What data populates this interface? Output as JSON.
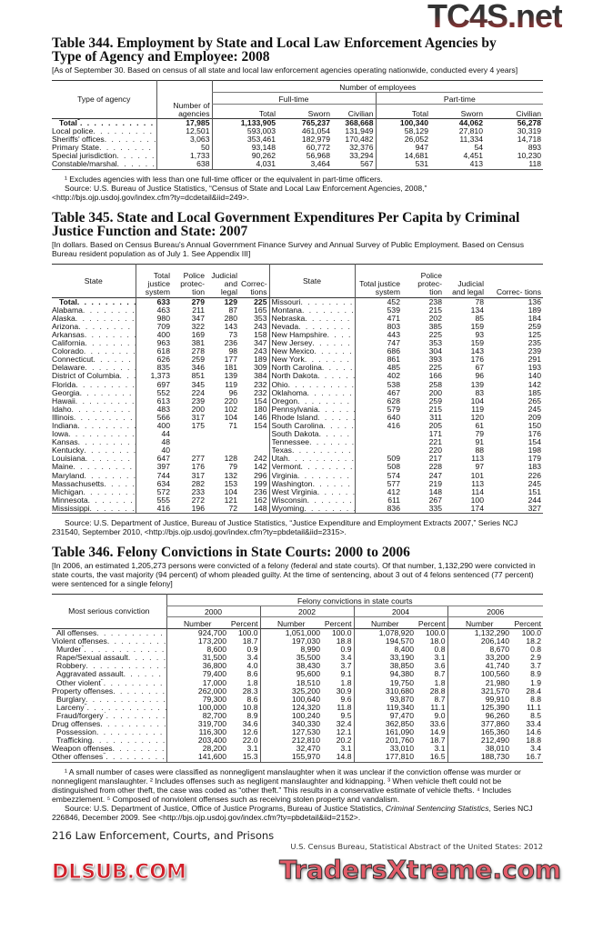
{
  "watermarks": {
    "top": "TC4S.net",
    "middle": "DLSUB.COM",
    "bottom": "TradersXtreme.com"
  },
  "t344": {
    "title": "Table 344. Employment by State and Local Law Enforcement Agencies by Type of Agency and Employee: 2008",
    "note": "[As of September 30. Based on census of all state and local law enforcement agencies operating nationwide, conducted every 4 years]",
    "headers": {
      "type": "Type of agency",
      "agencies": "Number of agencies",
      "employees": "Number of employees",
      "fulltime": "Full-time",
      "parttime": "Part-time",
      "total": "Total",
      "sworn": "Sworn",
      "civilian": "Civilian"
    },
    "rows": [
      {
        "label": "Total",
        "sup": "1",
        "bold": true,
        "indent": true,
        "v": [
          "17,985",
          "1,133,905",
          "765,237",
          "368,668",
          "100,340",
          "44,062",
          "56,278"
        ]
      },
      {
        "label": "Local police",
        "v": [
          "12,501",
          "593,003",
          "461,054",
          "131,949",
          "58,129",
          "27,810",
          "30,319"
        ]
      },
      {
        "label": "Sheriffs' offices",
        "v": [
          "3,063",
          "353,461",
          "182,979",
          "170,482",
          "26,052",
          "11,334",
          "14,718"
        ]
      },
      {
        "label": "Primary State",
        "v": [
          "50",
          "93,148",
          "60,772",
          "32,376",
          "947",
          "54",
          "893"
        ]
      },
      {
        "label": "Special jurisdiction",
        "v": [
          "1,733",
          "90,262",
          "56,968",
          "33,294",
          "14,681",
          "4,451",
          "10,230"
        ]
      },
      {
        "label": "Constable/marshal",
        "v": [
          "638",
          "4,031",
          "3,464",
          "567",
          "531",
          "413",
          "118"
        ]
      }
    ],
    "footnote": "¹ Excludes agencies with less than one full-time officer or the equivalent in part-time officers.",
    "source": "Source: U.S. Bureau of Justice Statistics, “Census of State and Local Law Enforcement Agencies, 2008,” <http://bjs.ojp.usdoj.gov/index.cfm?ty=dcdetail&iid=249>."
  },
  "t345": {
    "title": "Table 345. State and Local Government Expenditures Per Capita by Criminal Justice Function and State: 2007",
    "note": "[In dollars. Based on Census Bureau's Annual Government Finance Survey and Annual Survey of Public Employment. Based on Census Bureau resident population as of July 1. See Appendix III]",
    "headers": {
      "state": "State",
      "total": "Total justice system",
      "police": "Police protec- tion",
      "judicial": "Judicial and legal",
      "corrections": "Correc- tions"
    },
    "left": [
      {
        "label": "Total",
        "bold": true,
        "indent": true,
        "v": [
          "633",
          "279",
          "129",
          "225"
        ]
      },
      {
        "label": "Alabama",
        "v": [
          "463",
          "211",
          "87",
          "165"
        ]
      },
      {
        "label": "Alaska",
        "v": [
          "980",
          "347",
          "280",
          "353"
        ]
      },
      {
        "label": "Arizona",
        "v": [
          "709",
          "322",
          "143",
          "243"
        ]
      },
      {
        "label": "Arkansas",
        "v": [
          "400",
          "169",
          "73",
          "158"
        ]
      },
      {
        "label": "California",
        "v": [
          "963",
          "381",
          "236",
          "347"
        ]
      },
      {
        "label": "Colorado",
        "v": [
          "618",
          "278",
          "98",
          "243"
        ]
      },
      {
        "label": "Connecticut",
        "v": [
          "626",
          "259",
          "177",
          "189"
        ]
      },
      {
        "label": "Delaware",
        "v": [
          "835",
          "346",
          "181",
          "309"
        ]
      },
      {
        "label": "District of Columbia",
        "v": [
          "1,373",
          "851",
          "139",
          "384"
        ]
      },
      {
        "label": "Florida",
        "v": [
          "697",
          "345",
          "119",
          "232"
        ]
      },
      {
        "label": "Georgia",
        "v": [
          "552",
          "224",
          "96",
          "232"
        ]
      },
      {
        "label": "Hawaii",
        "v": [
          "613",
          "239",
          "220",
          "154"
        ]
      },
      {
        "label": "Idaho",
        "v": [
          "483",
          "200",
          "102",
          "180"
        ]
      },
      {
        "label": "Illinois",
        "v": [
          "566",
          "317",
          "104",
          "146"
        ]
      },
      {
        "label": "Indiana",
        "v": [
          "400",
          "175",
          "71",
          "154"
        ]
      },
      {
        "label": "Iowa",
        "v": [
          "44",
          "",
          "",
          ""
        ]
      },
      {
        "label": "Kansas",
        "v": [
          "48",
          "",
          "",
          ""
        ]
      },
      {
        "label": "Kentucky",
        "v": [
          "40",
          "",
          "",
          ""
        ]
      },
      {
        "label": "Louisiana",
        "v": [
          "647",
          "277",
          "128",
          "242"
        ]
      },
      {
        "label": "Maine",
        "v": [
          "397",
          "176",
          "79",
          "142"
        ]
      },
      {
        "label": "Maryland",
        "v": [
          "744",
          "317",
          "132",
          "296"
        ]
      },
      {
        "label": "Massachusetts",
        "v": [
          "634",
          "282",
          "153",
          "199"
        ]
      },
      {
        "label": "Michigan",
        "v": [
          "572",
          "233",
          "104",
          "236"
        ]
      },
      {
        "label": "Minnesota",
        "v": [
          "555",
          "272",
          "121",
          "162"
        ]
      },
      {
        "label": "Mississippi",
        "v": [
          "416",
          "196",
          "72",
          "148"
        ]
      }
    ],
    "right": [
      {
        "label": "Missouri",
        "v": [
          "452",
          "238",
          "78",
          "136"
        ]
      },
      {
        "label": "Montana",
        "v": [
          "539",
          "215",
          "134",
          "189"
        ]
      },
      {
        "label": "Nebraska",
        "v": [
          "471",
          "202",
          "85",
          "184"
        ]
      },
      {
        "label": "Nevada",
        "v": [
          "803",
          "385",
          "159",
          "259"
        ]
      },
      {
        "label": "New Hampshire",
        "v": [
          "443",
          "225",
          "93",
          "125"
        ]
      },
      {
        "label": "New Jersey",
        "v": [
          "747",
          "353",
          "159",
          "235"
        ]
      },
      {
        "label": "New Mexico",
        "v": [
          "686",
          "304",
          "143",
          "239"
        ]
      },
      {
        "label": "New York",
        "v": [
          "861",
          "393",
          "176",
          "291"
        ]
      },
      {
        "label": "North Carolina",
        "v": [
          "485",
          "225",
          "67",
          "193"
        ]
      },
      {
        "label": "North Dakota",
        "v": [
          "402",
          "166",
          "96",
          "140"
        ]
      },
      {
        "label": "Ohio",
        "v": [
          "538",
          "258",
          "139",
          "142"
        ]
      },
      {
        "label": "Oklahoma",
        "v": [
          "467",
          "200",
          "83",
          "185"
        ]
      },
      {
        "label": "Oregon",
        "v": [
          "628",
          "259",
          "104",
          "265"
        ]
      },
      {
        "label": "Pennsylvania",
        "v": [
          "579",
          "215",
          "119",
          "245"
        ]
      },
      {
        "label": "Rhode Island",
        "v": [
          "640",
          "311",
          "120",
          "209"
        ]
      },
      {
        "label": "South Carolina",
        "v": [
          "416",
          "205",
          "61",
          "150"
        ]
      },
      {
        "label": "South Dakota",
        "v": [
          "",
          "171",
          "79",
          "176"
        ]
      },
      {
        "label": "Tennessee",
        "v": [
          "",
          "221",
          "91",
          "154"
        ]
      },
      {
        "label": "Texas",
        "v": [
          "",
          "220",
          "88",
          "198"
        ]
      },
      {
        "label": "Utah",
        "v": [
          "509",
          "217",
          "113",
          "179"
        ]
      },
      {
        "label": "Vermont",
        "v": [
          "508",
          "228",
          "97",
          "183"
        ]
      },
      {
        "label": "Virginia",
        "v": [
          "574",
          "247",
          "101",
          "226"
        ]
      },
      {
        "label": "Washington",
        "v": [
          "577",
          "219",
          "113",
          "245"
        ]
      },
      {
        "label": "West Virginia",
        "v": [
          "412",
          "148",
          "114",
          "151"
        ]
      },
      {
        "label": "Wisconsin",
        "v": [
          "611",
          "267",
          "100",
          "244"
        ]
      },
      {
        "label": "Wyoming",
        "v": [
          "836",
          "335",
          "174",
          "327"
        ]
      }
    ],
    "source": "Source: U.S. Department of Justice, Bureau of Justice Statistics, “Justice Expenditure and Employment Extracts 2007,” Series NCJ 231540, September 2010, <http://bjs.ojp.usdoj.gov/index.cfm?ty=pbdetail&iid=2315>."
  },
  "t346": {
    "title": "Table 346. Felony Convictions in State Courts: 2000 to 2006",
    "note": "[In 2006, an estimated 1,205,273 persons were convicted of a felony (federal and state courts). Of that number, 1,132,290 were convicted in state courts, the vast majority (94 percent) of whom pleaded guilty. At the time of sentencing, about 3 out of 4 felons sentenced (77 percent) were sentenced for a single felony]",
    "headers": {
      "conviction": "Most serious conviction",
      "group": "Felony convictions in state courts",
      "years": [
        "2000",
        "2002",
        "2004",
        "2006"
      ],
      "number": "Number",
      "percent": "Percent"
    },
    "rows": [
      {
        "label": "All offenses",
        "indent": 1,
        "v": [
          "924,700",
          "100.0",
          "1,051,000",
          "100.0",
          "1,078,920",
          "100.0",
          "1,132,290",
          "100.0"
        ]
      },
      {
        "label": "Violent offenses",
        "v": [
          "173,200",
          "18.7",
          "197,030",
          "18.8",
          "194,570",
          "18.0",
          "206,140",
          "18.2"
        ]
      },
      {
        "label": "Murder",
        "sup": "1",
        "indent": 1,
        "v": [
          "8,600",
          "0.9",
          "8,990",
          "0.9",
          "8,400",
          "0.8",
          "8,670",
          "0.8"
        ]
      },
      {
        "label": "Rape/Sexual assault",
        "indent": 1,
        "v": [
          "31,500",
          "3.4",
          "35,500",
          "3.4",
          "33,190",
          "3.1",
          "33,200",
          "2.9"
        ]
      },
      {
        "label": "Robbery",
        "indent": 1,
        "v": [
          "36,800",
          "4.0",
          "38,430",
          "3.7",
          "38,850",
          "3.6",
          "41,740",
          "3.7"
        ]
      },
      {
        "label": "Aggravated assault",
        "indent": 1,
        "v": [
          "79,400",
          "8.6",
          "95,600",
          "9.1",
          "94,380",
          "8.7",
          "100,560",
          "8.9"
        ]
      },
      {
        "label": "Other violent",
        "sup": "2",
        "indent": 1,
        "v": [
          "17,000",
          "1.8",
          "18,510",
          "1.8",
          "19,750",
          "1.8",
          "21,980",
          "1.9"
        ]
      },
      {
        "label": "Property offenses",
        "v": [
          "262,000",
          "28.3",
          "325,200",
          "30.9",
          "310,680",
          "28.8",
          "321,570",
          "28.4"
        ]
      },
      {
        "label": "Burglary",
        "indent": 1,
        "v": [
          "79,300",
          "8.6",
          "100,640",
          "9.6",
          "93,870",
          "8.7",
          "99,910",
          "8.8"
        ]
      },
      {
        "label": "Larceny",
        "sup": "3",
        "indent": 1,
        "v": [
          "100,000",
          "10.8",
          "124,320",
          "11.8",
          "119,340",
          "11.1",
          "125,390",
          "11.1"
        ]
      },
      {
        "label": "Fraud/forgery",
        "sup": "4",
        "indent": 1,
        "v": [
          "82,700",
          "8.9",
          "100,240",
          "9.5",
          "97,470",
          "9.0",
          "96,260",
          "8.5"
        ]
      },
      {
        "label": "Drug offenses",
        "v": [
          "319,700",
          "34.6",
          "340,330",
          "32.4",
          "362,850",
          "33.6",
          "377,860",
          "33.4"
        ]
      },
      {
        "label": "Possession",
        "indent": 1,
        "v": [
          "116,300",
          "12.6",
          "127,530",
          "12.1",
          "161,090",
          "14.9",
          "165,360",
          "14.6"
        ]
      },
      {
        "label": "Trafficking",
        "indent": 1,
        "v": [
          "203,400",
          "22.0",
          "212,810",
          "20.2",
          "201,760",
          "18.7",
          "212,490",
          "18.8"
        ]
      },
      {
        "label": "Weapon offenses",
        "v": [
          "28,200",
          "3.1",
          "32,470",
          "3.1",
          "33,010",
          "3.1",
          "38,010",
          "3.4"
        ]
      },
      {
        "label": "Other offenses",
        "sup": "5",
        "v": [
          "141,600",
          "15.3",
          "155,970",
          "14.8",
          "177,810",
          "16.5",
          "188,730",
          "16.7"
        ]
      }
    ],
    "footnotes": "¹ A small number of cases were classified as nonnegligent manslaughter when it was unclear if the conviction offense was murder or nonnegligent manslaughter. ² Includes offenses such as negligent manslaughter and kidnapping. ³ When vehicle theft could not be distinguished from other theft, the case was coded as “other theft.” This results in a conservative estimate of vehicle thefts. ⁴ Includes embezzlement. ⁵ Composed of nonviolent offenses such as receiving stolen property and vandalism.",
    "source_pre": "Source: U.S. Department of Justice, Office of Justice Programs, Bureau of Justice Statistics, ",
    "source_italic": "Criminal Sentencing Statistics",
    "source_post": ", Series NCJ 226846, December 2009. See <http://bjs.ojp.usdoj.gov/index.cfm?ty=pbdetail&iid=2152>."
  },
  "footer": {
    "page": "216  Law Enforcement, Courts, and Prisons",
    "publication": "U.S. Census Bureau, Statistical Abstract of the United States: 2012"
  }
}
